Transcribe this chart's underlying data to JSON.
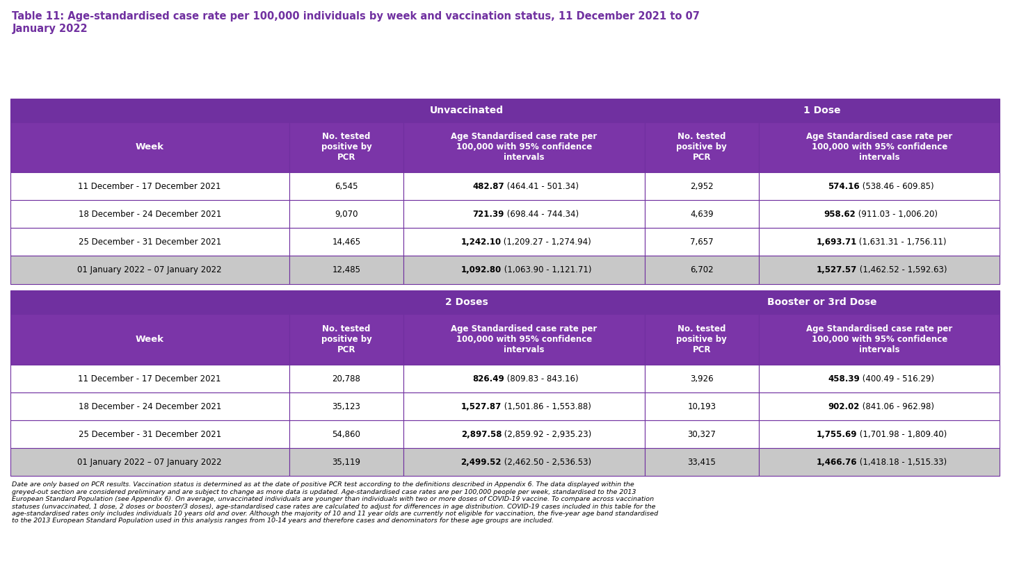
{
  "title_line1": "Table 11: Age-standardised case rate per 100,000 individuals by week and vaccination status, 11 December 2021 to 07",
  "title_line2": "January 2022",
  "title_color": "#7030A0",
  "purple_dark": "#7030A0",
  "purple_mid": "#7B35A8",
  "white": "#FFFFFF",
  "grey": "#C8C8C8",
  "border": "#7030A0",
  "section1": "Unvaccinated",
  "section2": "1 Dose",
  "section3": "2 Doses",
  "section4": "Booster or 3rd Dose",
  "weeks": [
    "11 December - 17 December 2021",
    "18 December - 24 December 2021",
    "25 December - 31 December 2021",
    "01 January 2022 – 07 January 2022"
  ],
  "col_widths_raw": [
    22,
    9,
    19,
    9,
    19
  ],
  "unvacc_tested": [
    "6,545",
    "9,070",
    "14,465",
    "12,485"
  ],
  "unvacc_bold": [
    "482.87",
    "721.39",
    "1,242.10",
    "1,092.80"
  ],
  "unvacc_normal": [
    " (464.41 - 501.34)",
    " (698.44 - 744.34)",
    " (1,209.27 - 1,274.94)",
    " (1,063.90 - 1,121.71)"
  ],
  "dose1_tested": [
    "2,952",
    "4,639",
    "7,657",
    "6,702"
  ],
  "dose1_bold": [
    "574.16",
    "958.62",
    "1,693.71",
    "1,527.57"
  ],
  "dose1_normal": [
    " (538.46 - 609.85)",
    " (911.03 - 1,006.20)",
    " (1,631.31 - 1,756.11)",
    " (1,462.52 - 1,592.63)"
  ],
  "dose2_tested": [
    "20,788",
    "35,123",
    "54,860",
    "35,119"
  ],
  "dose2_bold": [
    "826.49",
    "1,527.87",
    "2,897.58",
    "2,499.52"
  ],
  "dose2_normal": [
    " (809.83 - 843.16)",
    " (1,501.86 - 1,553.88)",
    " (2,859.92 - 2,935.23)",
    " (2,462.50 - 2,536.53)"
  ],
  "boost_tested": [
    "3,926",
    "10,193",
    "30,327",
    "33,415"
  ],
  "boost_bold": [
    "458.39",
    "902.02",
    "1,755.69",
    "1,466.76"
  ],
  "boost_normal": [
    " (400.49 - 516.29)",
    " (841.06 - 962.98)",
    " (1,701.98 - 1,809.40)",
    " (1,418.18 - 1,515.33)"
  ],
  "footnote": "Date are only based on PCR results. Vaccination status is determined as at the date of positive PCR test according to the definitions described in Appendix 6. The data displayed within the\ngreyed-out section are considered preliminary and are subject to change as more data is updated. Age-standardised case rates are per 100,000 people per week, standardised to the 2013\nEuropean Standard Population (see Appendix 6). On average, unvaccinated individuals are younger than individuals with two or more doses of COVID-19 vaccine. To compare across vaccination\nstatuses (unvaccinated, 1 dose, 2 doses or booster/3 doses), age-standardised case rates are calculated to adjust for differences in age distribution. COVID-19 cases included in this table for the\nage-standardised rates only includes individuals 10 years old and over. Although the majority of 10 and 11 year olds are currently not eligible for vaccination, the five-year age band standardised\nto the 2013 European Standard Population used in this analysis ranges from 10-14 years and therefore cases and denominators for these age groups are included."
}
